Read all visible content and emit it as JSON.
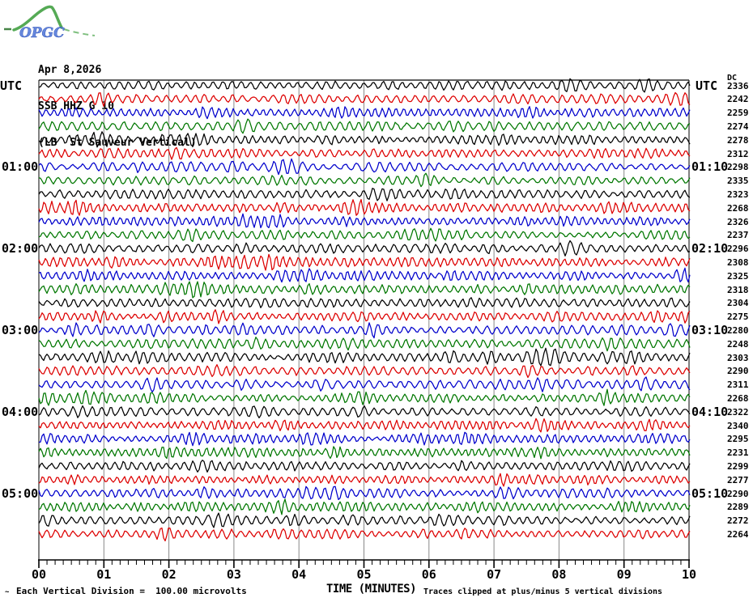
{
  "header": {
    "logo_text": "OPGC",
    "date": "Apr 8,2026",
    "station": "SSB HHZ G 10",
    "location": "(LB  St Sauveur Vertical)"
  },
  "axes": {
    "utc_left": "UTC",
    "utc_right": "UTC",
    "dc_header": "DC"
  },
  "x_axis": {
    "title": "TIME (MINUTES)",
    "labels": [
      "00",
      "01",
      "02",
      "03",
      "04",
      "05",
      "06",
      "07",
      "08",
      "09",
      "10"
    ]
  },
  "footer": {
    "scale_marker": "~",
    "scale_note": "Each Vertical Division =  100.00 microvolts",
    "clip_note": "Traces clipped at plus/minus 5 vertical divisions"
  },
  "colors": {
    "black": "#000000",
    "red": "#dd0000",
    "blue": "#0000cc",
    "green": "#007700",
    "grid": "#888888",
    "logo_green": "#55aa55",
    "logo_blue": "#5577cc"
  },
  "chart_data": {
    "type": "line",
    "title": "SSB HHZ G 10 helicorder, Apr 8,2026 (LB  St Sauveur Vertical)",
    "xlabel": "TIME (MINUTES)",
    "x_range": [
      0,
      10
    ],
    "x_tick_labels": [
      "00",
      "01",
      "02",
      "03",
      "04",
      "05",
      "06",
      "07",
      "08",
      "09",
      "10"
    ],
    "grid": "vertical-minute-lines",
    "traces_per_hour": 6,
    "minutes_per_trace": 10,
    "vertical_division_microvolts": 100.0,
    "clip_divisions": 5,
    "traces": "see top-level traces array (start time, color, DC offset per row)"
  },
  "traces": [
    {
      "color": "black",
      "dc": "2336",
      "left_label": "",
      "right_label": ""
    },
    {
      "color": "red",
      "dc": "2242",
      "left_label": "",
      "right_label": ""
    },
    {
      "color": "blue",
      "dc": "2259",
      "left_label": "",
      "right_label": ""
    },
    {
      "color": "green",
      "dc": "2274",
      "left_label": "",
      "right_label": ""
    },
    {
      "color": "black",
      "dc": "2278",
      "left_label": "",
      "right_label": ""
    },
    {
      "color": "red",
      "dc": "2312",
      "left_label": "",
      "right_label": ""
    },
    {
      "color": "blue",
      "dc": "2298",
      "left_label": "01:00",
      "right_label": "01:10"
    },
    {
      "color": "green",
      "dc": "2335",
      "left_label": "",
      "right_label": ""
    },
    {
      "color": "black",
      "dc": "2323",
      "left_label": "",
      "right_label": ""
    },
    {
      "color": "red",
      "dc": "2268",
      "left_label": "",
      "right_label": ""
    },
    {
      "color": "blue",
      "dc": "2326",
      "left_label": "",
      "right_label": ""
    },
    {
      "color": "green",
      "dc": "2237",
      "left_label": "",
      "right_label": ""
    },
    {
      "color": "black",
      "dc": "2296",
      "left_label": "02:00",
      "right_label": "02:10"
    },
    {
      "color": "red",
      "dc": "2308",
      "left_label": "",
      "right_label": ""
    },
    {
      "color": "blue",
      "dc": "2325",
      "left_label": "",
      "right_label": ""
    },
    {
      "color": "green",
      "dc": "2318",
      "left_label": "",
      "right_label": ""
    },
    {
      "color": "black",
      "dc": "2304",
      "left_label": "",
      "right_label": ""
    },
    {
      "color": "red",
      "dc": "2275",
      "left_label": "",
      "right_label": ""
    },
    {
      "color": "blue",
      "dc": "2280",
      "left_label": "03:00",
      "right_label": "03:10"
    },
    {
      "color": "green",
      "dc": "2248",
      "left_label": "",
      "right_label": ""
    },
    {
      "color": "black",
      "dc": "2303",
      "left_label": "",
      "right_label": ""
    },
    {
      "color": "red",
      "dc": "2290",
      "left_label": "",
      "right_label": ""
    },
    {
      "color": "blue",
      "dc": "2311",
      "left_label": "",
      "right_label": ""
    },
    {
      "color": "green",
      "dc": "2268",
      "left_label": "",
      "right_label": ""
    },
    {
      "color": "black",
      "dc": "2322",
      "left_label": "04:00",
      "right_label": "04:10"
    },
    {
      "color": "red",
      "dc": "2340",
      "left_label": "",
      "right_label": ""
    },
    {
      "color": "blue",
      "dc": "2295",
      "left_label": "",
      "right_label": ""
    },
    {
      "color": "green",
      "dc": "2231",
      "left_label": "",
      "right_label": ""
    },
    {
      "color": "black",
      "dc": "2299",
      "left_label": "",
      "right_label": ""
    },
    {
      "color": "red",
      "dc": "2277",
      "left_label": "",
      "right_label": ""
    },
    {
      "color": "blue",
      "dc": "2290",
      "left_label": "05:00",
      "right_label": "05:10"
    },
    {
      "color": "green",
      "dc": "2289",
      "left_label": "",
      "right_label": ""
    },
    {
      "color": "black",
      "dc": "2272",
      "left_label": "",
      "right_label": ""
    },
    {
      "color": "red",
      "dc": "2264",
      "left_label": "",
      "right_label": ""
    }
  ]
}
